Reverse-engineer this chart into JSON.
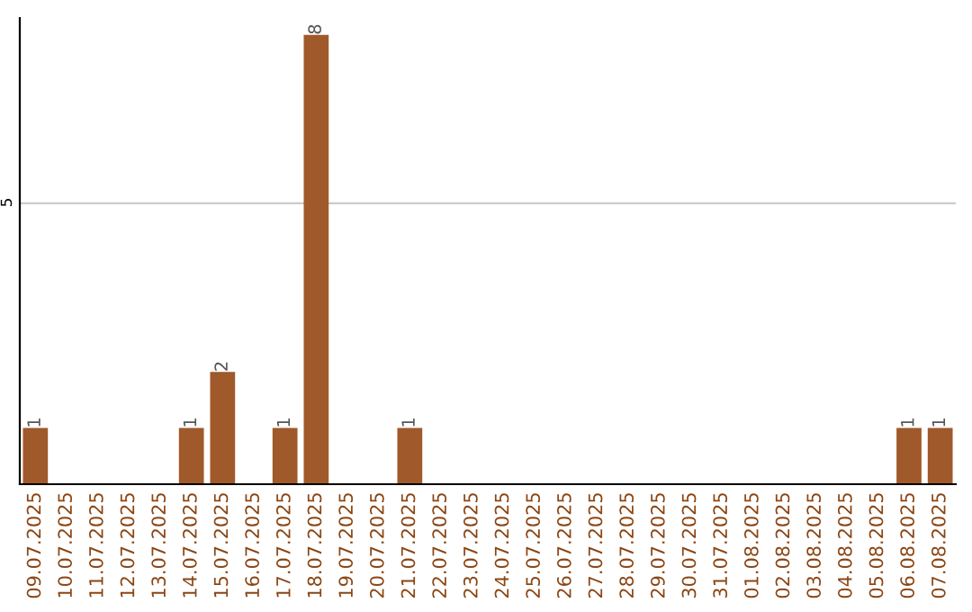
{
  "chart_data": {
    "type": "bar",
    "categories": [
      "09.07.2025",
      "10.07.2025",
      "11.07.2025",
      "12.07.2025",
      "13.07.2025",
      "14.07.2025",
      "15.07.2025",
      "16.07.2025",
      "17.07.2025",
      "18.07.2025",
      "19.07.2025",
      "20.07.2025",
      "21.07.2025",
      "22.07.2025",
      "23.07.2025",
      "24.07.2025",
      "25.07.2025",
      "26.07.2025",
      "27.07.2025",
      "28.07.2025",
      "29.07.2025",
      "30.07.2025",
      "31.07.2025",
      "01.08.2025",
      "02.08.2025",
      "03.08.2025",
      "04.08.2025",
      "05.08.2025",
      "06.08.2025",
      "07.08.2025"
    ],
    "values": [
      1,
      0,
      0,
      0,
      0,
      1,
      2,
      0,
      1,
      8,
      0,
      0,
      1,
      0,
      0,
      0,
      0,
      0,
      0,
      0,
      0,
      0,
      0,
      0,
      0,
      0,
      0,
      0,
      1,
      1
    ],
    "value_labels": [
      "1",
      null,
      null,
      null,
      null,
      "1",
      "2",
      null,
      "1",
      "8",
      null,
      null,
      "1",
      null,
      null,
      null,
      null,
      null,
      null,
      null,
      null,
      null,
      null,
      null,
      null,
      null,
      null,
      null,
      "1",
      "1"
    ],
    "color": "#a0592a",
    "ylim": [
      0,
      8.3
    ],
    "yticks": [
      5
    ],
    "grid": "y"
  }
}
